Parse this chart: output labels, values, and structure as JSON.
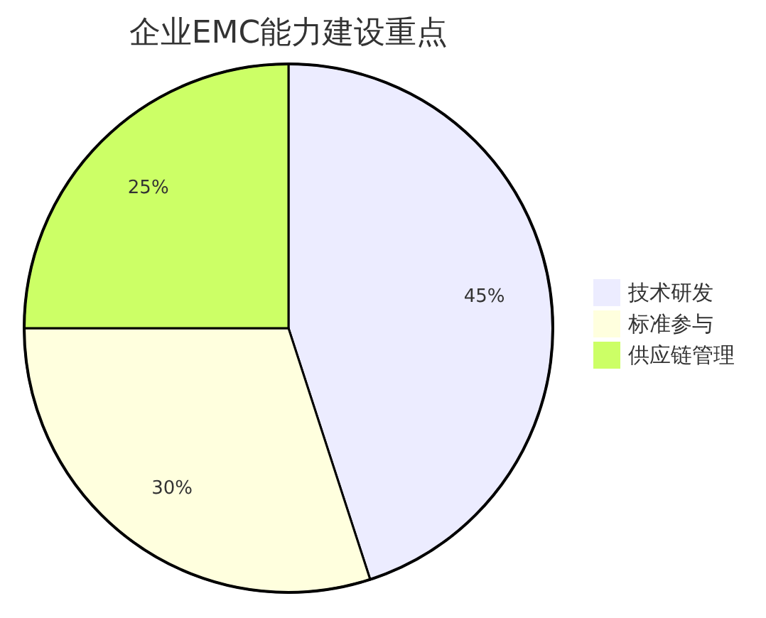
{
  "chart_data": {
    "type": "pie",
    "title": "企业EMC能力建设重点",
    "categories": [
      "技术研发",
      "标准参与",
      "供应链管理"
    ],
    "values": [
      45,
      30,
      25
    ],
    "colors": [
      "#ececff",
      "#ffffde",
      "#ccff66"
    ],
    "legend": "right",
    "value_labels": [
      "45%",
      "30%",
      "25%"
    ]
  }
}
